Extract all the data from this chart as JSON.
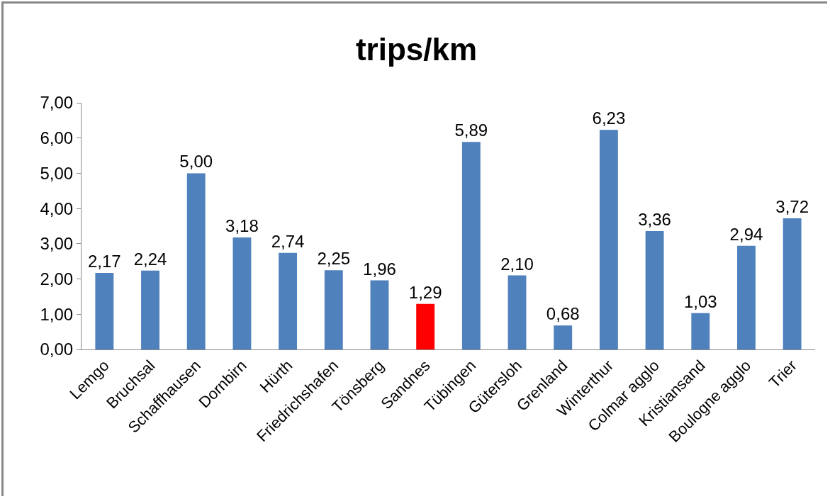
{
  "chart_data": {
    "type": "bar",
    "title": "trips/km",
    "categories": [
      "Lemgo",
      "Bruchsal",
      "Schaffhausen",
      "Dornbirn",
      "Hürth",
      "Friedrichshafen",
      "Tönsberg",
      "Sandnes",
      "Tübingen",
      "Gütersloh",
      "Grenland",
      "Winterthur",
      "Colmar agglo",
      "Kristiansand",
      "Boulogne agglo",
      "Trier"
    ],
    "values": [
      2.17,
      2.24,
      5.0,
      3.18,
      2.74,
      2.25,
      1.96,
      1.29,
      5.89,
      2.1,
      0.68,
      6.23,
      3.36,
      1.03,
      2.94,
      3.72
    ],
    "value_labels": [
      "2,17",
      "2,24",
      "5,00",
      "3,18",
      "2,74",
      "2,25",
      "1,96",
      "1,29",
      "5,89",
      "2,10",
      "0,68",
      "6,23",
      "3,36",
      "1,03",
      "2,94",
      "3,72"
    ],
    "colors": [
      "#4f81bd",
      "#4f81bd",
      "#4f81bd",
      "#4f81bd",
      "#4f81bd",
      "#4f81bd",
      "#4f81bd",
      "#ff0000",
      "#4f81bd",
      "#4f81bd",
      "#4f81bd",
      "#4f81bd",
      "#4f81bd",
      "#4f81bd",
      "#4f81bd",
      "#4f81bd"
    ],
    "ylim": [
      0,
      7
    ],
    "yticks": [
      {
        "value": 0,
        "label": "0,00"
      },
      {
        "value": 1,
        "label": "1,00"
      },
      {
        "value": 2,
        "label": "2,00"
      },
      {
        "value": 3,
        "label": "3,00"
      },
      {
        "value": 4,
        "label": "4,00"
      },
      {
        "value": 5,
        "label": "5,00"
      },
      {
        "value": 6,
        "label": "6,00"
      },
      {
        "value": 7,
        "label": "7,00"
      }
    ],
    "grid": false
  }
}
